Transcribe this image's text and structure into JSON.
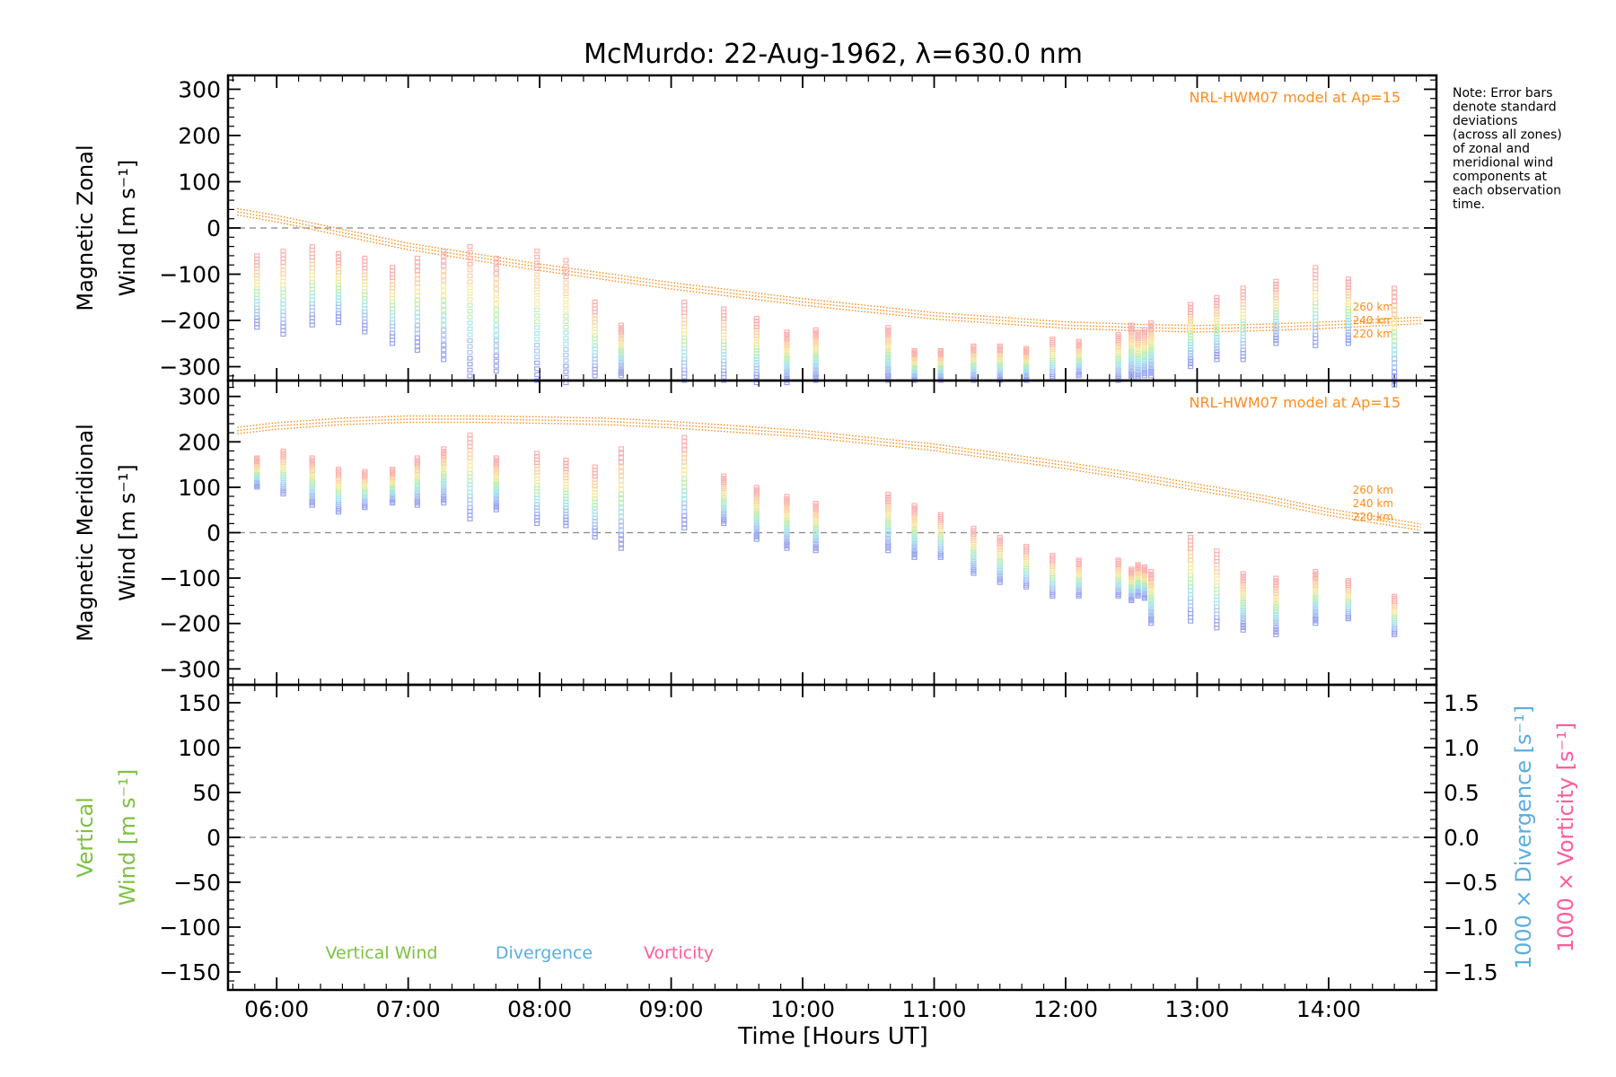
{
  "title": "McMurdo: 22-Aug-1962, λ=630.0 nm",
  "note_lines": [
    "Note: Error bars",
    "denote standard",
    "deviations",
    "(across all zones)",
    "of zonal and",
    "meridional wind",
    "components at",
    "each observation",
    "time."
  ],
  "colors": {
    "model": "#ff8c1a",
    "vertical": "#7cc242",
    "divergence": "#5aaee0",
    "vorticity": "#ff5c9a",
    "zero_line": "#888888"
  },
  "chart_data": [
    {
      "type": "scatter",
      "panel": "zonal",
      "ylabel_line1": "Magnetic Zonal",
      "ylabel_line2": "Wind [m s⁻¹]",
      "ylim": [
        -330,
        330
      ],
      "yticks": [
        -300,
        -200,
        -100,
        0,
        100,
        200,
        300
      ],
      "model_label": "NRL-HWM07 model at Ap=15",
      "altitude_labels": [
        "260 km",
        "240 km",
        "220 km"
      ],
      "model_curve": {
        "x": [
          5.7,
          6.0,
          7.0,
          8.0,
          9.0,
          10.0,
          11.0,
          12.0,
          12.5,
          13.0,
          13.5,
          14.0,
          14.7
        ],
        "y": [
          35,
          20,
          -40,
          -85,
          -125,
          -160,
          -190,
          -210,
          -215,
          -218,
          -215,
          -210,
          -200
        ]
      },
      "observations": {
        "x": [
          5.85,
          6.05,
          6.27,
          6.47,
          6.67,
          6.88,
          7.07,
          7.27,
          7.47,
          7.67,
          7.98,
          8.2,
          8.42,
          8.62,
          9.1,
          9.4,
          9.65,
          9.88,
          10.1,
          10.65,
          10.85,
          11.05,
          11.3,
          11.5,
          11.7,
          11.9,
          12.1,
          12.4,
          12.5,
          12.55,
          12.6,
          12.65,
          12.95,
          13.15,
          13.35,
          13.6,
          13.9,
          14.15,
          14.5
        ],
        "low": [
          -215,
          -230,
          -210,
          -205,
          -225,
          -250,
          -265,
          -285,
          -320,
          -310,
          -330,
          -335,
          -320,
          -320,
          -330,
          -330,
          -335,
          -335,
          -330,
          -330,
          -330,
          -330,
          -330,
          -330,
          -330,
          -325,
          -320,
          -330,
          -325,
          -325,
          -320,
          -320,
          -300,
          -285,
          -285,
          -250,
          -255,
          -250,
          -340
        ],
        "high": [
          -60,
          -50,
          -40,
          -55,
          -65,
          -85,
          -65,
          -50,
          -40,
          -65,
          -50,
          -70,
          -160,
          -210,
          -160,
          -175,
          -195,
          -225,
          -220,
          -215,
          -265,
          -265,
          -255,
          -255,
          -260,
          -240,
          -245,
          -230,
          -210,
          -225,
          -220,
          -205,
          -165,
          -150,
          -130,
          -115,
          -85,
          -110,
          -130
        ]
      }
    },
    {
      "type": "scatter",
      "panel": "meridional",
      "ylabel_line1": "Magnetic Meridional",
      "ylabel_line2": "Wind [m s⁻¹]",
      "ylim": [
        -335,
        335
      ],
      "yticks": [
        -300,
        -200,
        -100,
        0,
        100,
        200,
        300
      ],
      "model_label": "NRL-HWM07 model at Ap=15",
      "altitude_labels": [
        "260 km",
        "240 km",
        "220 km"
      ],
      "model_curve": {
        "x": [
          5.7,
          6.0,
          6.5,
          7.0,
          7.5,
          8.0,
          8.5,
          9.0,
          9.5,
          10.0,
          10.5,
          11.0,
          11.5,
          12.0,
          12.5,
          13.0,
          13.5,
          14.0,
          14.7
        ],
        "y": [
          225,
          235,
          245,
          250,
          250,
          248,
          245,
          238,
          228,
          218,
          203,
          188,
          168,
          148,
          125,
          100,
          75,
          45,
          12
        ]
      },
      "observations": {
        "x": [
          5.85,
          6.05,
          6.27,
          6.47,
          6.67,
          6.88,
          7.07,
          7.27,
          7.47,
          7.67,
          7.98,
          8.2,
          8.42,
          8.62,
          9.1,
          9.4,
          9.65,
          9.88,
          10.1,
          10.65,
          10.85,
          11.05,
          11.3,
          11.5,
          11.7,
          11.9,
          12.1,
          12.4,
          12.5,
          12.55,
          12.6,
          12.65,
          12.95,
          13.15,
          13.35,
          13.6,
          13.9,
          14.15,
          14.5
        ],
        "low": [
          100,
          85,
          60,
          45,
          55,
          65,
          60,
          65,
          30,
          50,
          20,
          15,
          -10,
          -35,
          10,
          20,
          -15,
          -35,
          -40,
          -40,
          -55,
          -55,
          -90,
          -110,
          -120,
          -140,
          -140,
          -140,
          -150,
          -140,
          -145,
          -200,
          -195,
          -210,
          -215,
          -225,
          -200,
          -190,
          -225
        ],
        "high": [
          165,
          180,
          165,
          140,
          135,
          140,
          165,
          185,
          215,
          165,
          175,
          160,
          145,
          185,
          210,
          125,
          100,
          80,
          65,
          85,
          60,
          40,
          10,
          -10,
          -30,
          -50,
          -60,
          -60,
          -80,
          -70,
          -75,
          -85,
          -10,
          -40,
          -90,
          -100,
          -85,
          -105,
          -140
        ]
      }
    },
    {
      "type": "line",
      "panel": "vertical",
      "ylabel_line1": "Vertical",
      "ylabel_line2": "Wind [m s⁻¹]",
      "ylim": [
        -170,
        170
      ],
      "yticks": [
        -150,
        -100,
        -50,
        0,
        50,
        100,
        150
      ],
      "y2label_line1": "1000 × Divergence [s⁻¹]",
      "y2label_line2": "1000 × Vorticity [s⁻¹]",
      "y2lim": [
        -1.7,
        1.7
      ],
      "y2ticks": [
        -1.5,
        -1.0,
        -0.5,
        0.0,
        0.5,
        1.0,
        1.5
      ],
      "legend": [
        "Vertical Wind",
        "Divergence",
        "Vorticity"
      ]
    }
  ],
  "xaxis": {
    "label": "Time [Hours UT]",
    "xlim": [
      5.63,
      14.82
    ],
    "ticks": [
      6,
      7,
      8,
      9,
      10,
      11,
      12,
      13,
      14
    ],
    "tick_labels": [
      "06:00",
      "07:00",
      "08:00",
      "09:00",
      "10:00",
      "11:00",
      "12:00",
      "13:00",
      "14:00"
    ]
  }
}
